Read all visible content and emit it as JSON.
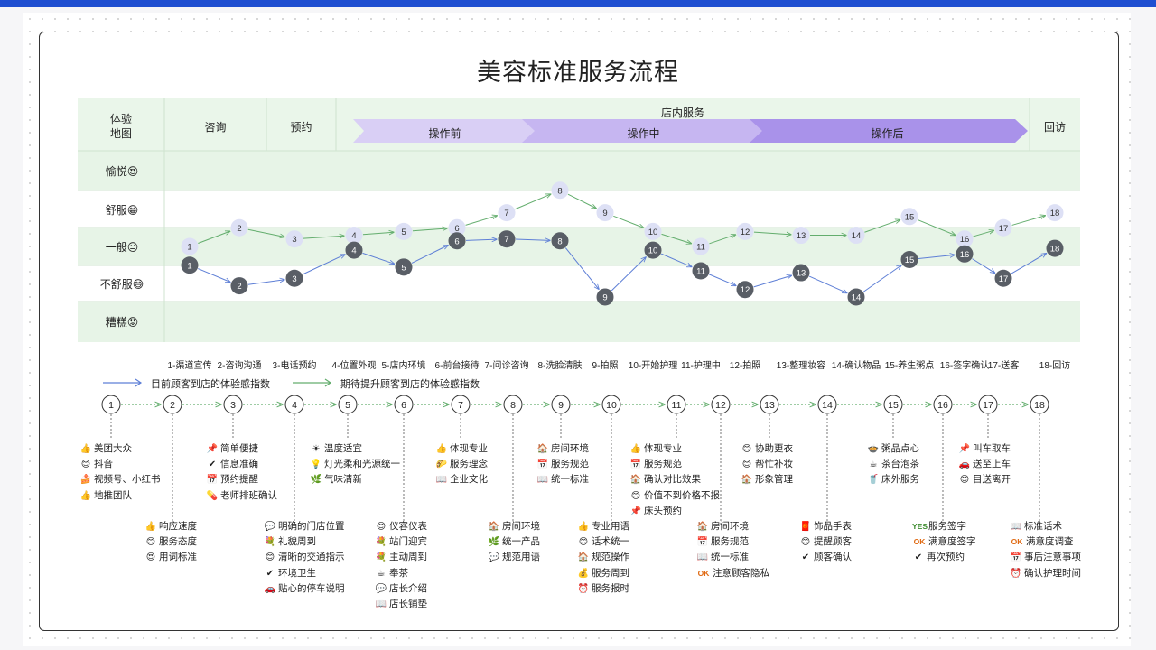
{
  "title": "美容标准服务流程",
  "header": {
    "corner": [
      "体验",
      "地图"
    ],
    "stages": [
      "咨询",
      "预约",
      "店内服务",
      "回访"
    ],
    "phases": [
      "操作前",
      "操作中",
      "操作后"
    ]
  },
  "levels": [
    "愉悦😍",
    "舒服😁",
    "一般😐",
    "不舒服😅",
    "糟糕😡"
  ],
  "steps": [
    "1-渠道宣传",
    "2-咨询沟通",
    "3-电话预约",
    "4-位置外观",
    "5-店内环境",
    "6-前台接待",
    "7-问诊咨询",
    "8-洗脸清肤",
    "9-拍照",
    "10-开始护理",
    "11-护理中",
    "12-拍照",
    "13-整理妆容",
    "14-确认物品",
    "15-养生粥点",
    "16-签字确认",
    "17-送客",
    "18-回访"
  ],
  "legend": {
    "current": "目前顾客到店的体验感指数",
    "expected": "期待提升顾客到店的体验感指数"
  },
  "colors": {
    "current": "#5a5f68",
    "expected": "#d9dcf4",
    "band": "#eaf6ea",
    "phase1": "#d9cff5",
    "phase2": "#c6b6f1",
    "phase3": "#a992ea",
    "line_current": "#5e7fd6",
    "line_expected": "#63ad6d"
  },
  "chart_data": {
    "type": "line",
    "x": [
      1,
      2,
      3,
      4,
      5,
      6,
      7,
      8,
      9,
      10,
      11,
      12,
      13,
      14,
      15,
      16,
      17,
      18
    ],
    "y_levels": [
      "糟糕",
      "不舒服",
      "一般",
      "舒服",
      "愉悦"
    ],
    "series": [
      {
        "name": "期待提升顾客到店的体验感指数",
        "values": [
          2.3,
          2.8,
          2.5,
          2.6,
          2.7,
          2.8,
          3.2,
          3.8,
          3.2,
          2.7,
          2.3,
          2.7,
          2.6,
          2.6,
          3.1,
          2.5,
          2.8,
          3.2
        ]
      },
      {
        "name": "目前顾客到店的体验感指数",
        "values": [
          1.8,
          1.25,
          1.45,
          2.2,
          1.75,
          2.45,
          2.5,
          2.45,
          0.95,
          2.2,
          1.65,
          1.15,
          1.6,
          0.95,
          1.95,
          2.1,
          1.45,
          2.25
        ]
      }
    ]
  },
  "touchpoints_top": [
    {
      "step": 1,
      "items": [
        {
          "icon": "👍",
          "text": "美团大众"
        },
        {
          "icon": "😊",
          "text": "抖音"
        },
        {
          "icon": "🍰",
          "text": "视频号、小红书"
        },
        {
          "icon": "👍",
          "text": "地推团队"
        }
      ]
    },
    {
      "step": 3,
      "items": [
        {
          "icon": "📌",
          "text": "简单便捷"
        },
        {
          "icon": "✔",
          "text": "信息准确"
        },
        {
          "icon": "📅",
          "text": "预约提醒"
        },
        {
          "icon": "💊",
          "text": "老师排班确认"
        }
      ]
    },
    {
      "step": 5,
      "items": [
        {
          "icon": "☀",
          "text": "温度适宜"
        },
        {
          "icon": "💡",
          "text": "灯光柔和光源统一"
        },
        {
          "icon": "🌿",
          "text": "气味清新"
        }
      ]
    },
    {
      "step": 7,
      "items": [
        {
          "icon": "👍",
          "text": "体现专业"
        },
        {
          "icon": "🌮",
          "text": "服务理念"
        },
        {
          "icon": "📖",
          "text": "企业文化"
        }
      ]
    },
    {
      "step": 9,
      "items": [
        {
          "icon": "🏠",
          "text": "房间环境"
        },
        {
          "icon": "📅",
          "text": "服务规范"
        },
        {
          "icon": "📖",
          "text": "统一标准"
        }
      ]
    },
    {
      "step": 11,
      "items": [
        {
          "icon": "👍",
          "text": "体现专业"
        },
        {
          "icon": "📅",
          "text": "服务规范"
        },
        {
          "icon": "🏠",
          "text": "确认对比效果"
        },
        {
          "icon": "😊",
          "text": "价值不到价格不报"
        },
        {
          "icon": "📌",
          "text": "床头预约"
        }
      ]
    },
    {
      "step": 13,
      "items": [
        {
          "icon": "😊",
          "text": "协助更衣"
        },
        {
          "icon": "😊",
          "text": "帮忙补妆"
        },
        {
          "icon": "🏠",
          "text": "形象管理"
        }
      ]
    },
    {
      "step": 15,
      "items": [
        {
          "icon": "🍲",
          "text": "粥品点心"
        },
        {
          "icon": "☕",
          "text": "茶台泡茶"
        },
        {
          "icon": "🥤",
          "text": "床外服务"
        }
      ]
    },
    {
      "step": 17,
      "items": [
        {
          "icon": "📌",
          "text": "叫车取车"
        },
        {
          "icon": "🚗",
          "text": "送至上车"
        },
        {
          "icon": "😊",
          "text": "目送离开"
        }
      ]
    }
  ],
  "touchpoints_bottom": [
    {
      "step": 2,
      "items": [
        {
          "icon": "👍",
          "text": "响应速度"
        },
        {
          "icon": "😊",
          "text": "服务态度"
        },
        {
          "icon": "😍",
          "text": "用词标准"
        }
      ]
    },
    {
      "step": 4,
      "items": [
        {
          "icon": "💬",
          "text": "明确的门店位置"
        },
        {
          "icon": "💐",
          "text": "礼貌周到"
        },
        {
          "icon": "😊",
          "text": "清晰的交通指示"
        },
        {
          "icon": "✔",
          "text": "环境卫生"
        },
        {
          "icon": "🚗",
          "text": "贴心的停车说明"
        }
      ]
    },
    {
      "step": 6,
      "items": [
        {
          "icon": "😊",
          "text": "仪容仪表"
        },
        {
          "icon": "💐",
          "text": "站门迎宾"
        },
        {
          "icon": "💐",
          "text": "主动周到"
        },
        {
          "icon": "☕",
          "text": "奉茶"
        },
        {
          "icon": "💬",
          "text": "店长介绍"
        },
        {
          "icon": "📖",
          "text": "店长铺垫"
        }
      ]
    },
    {
      "step": 8,
      "items": [
        {
          "icon": "🏠",
          "text": "房间环境"
        },
        {
          "icon": "🌿",
          "text": "统一产品"
        },
        {
          "icon": "💬",
          "text": "规范用语"
        }
      ]
    },
    {
      "step": 10,
      "items": [
        {
          "icon": "👍",
          "text": "专业用语"
        },
        {
          "icon": "😊",
          "text": "话术统一"
        },
        {
          "icon": "🏠",
          "text": "规范操作"
        },
        {
          "icon": "💰",
          "text": "服务周到"
        },
        {
          "icon": "⏰",
          "text": "服务报时"
        }
      ]
    },
    {
      "step": 12,
      "items": [
        {
          "icon": "🏠",
          "text": "房间环境"
        },
        {
          "icon": "📅",
          "text": "服务规范"
        },
        {
          "icon": "📖",
          "text": "统一标准"
        },
        {
          "icon": "OK",
          "text": "注意顾客隐私"
        }
      ]
    },
    {
      "step": 14,
      "items": [
        {
          "icon": "🧧",
          "text": "饰品手表"
        },
        {
          "icon": "😊",
          "text": "提醒顾客"
        },
        {
          "icon": "✔",
          "text": "顾客确认"
        }
      ]
    },
    {
      "step": 16,
      "items": [
        {
          "icon": "YES",
          "text": "服务签字"
        },
        {
          "icon": "OK",
          "text": "满意度签字"
        },
        {
          "icon": "✔",
          "text": "再次预约"
        }
      ]
    },
    {
      "step": 18,
      "items": [
        {
          "icon": "📖",
          "text": "标准话术"
        },
        {
          "icon": "OK",
          "text": "满意度调查"
        },
        {
          "icon": "📅",
          "text": "事后注意事项"
        },
        {
          "icon": "⏰",
          "text": "确认护理时间"
        }
      ]
    }
  ]
}
